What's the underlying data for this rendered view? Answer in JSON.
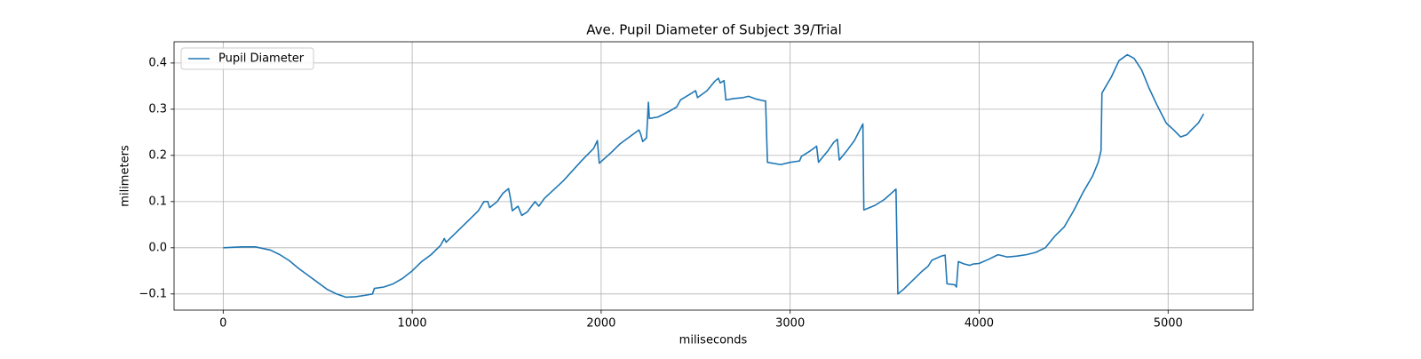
{
  "chart_data": {
    "type": "line",
    "title": "Ave. Pupil Diameter of Subject 39/Trial",
    "xlabel": "miliseconds",
    "ylabel": "milimeters",
    "x": [
      0,
      100,
      170,
      250,
      300,
      350,
      400,
      450,
      500,
      550,
      600,
      650,
      700,
      750,
      790,
      800,
      850,
      900,
      950,
      1000,
      1050,
      1100,
      1150,
      1170,
      1180,
      1250,
      1300,
      1350,
      1380,
      1400,
      1410,
      1450,
      1480,
      1510,
      1520,
      1530,
      1560,
      1580,
      1610,
      1650,
      1670,
      1700,
      1800,
      1900,
      1960,
      1980,
      1990,
      2050,
      2100,
      2200,
      2210,
      2220,
      2240,
      2250,
      2255,
      2300,
      2350,
      2400,
      2420,
      2480,
      2500,
      2510,
      2560,
      2600,
      2620,
      2630,
      2650,
      2660,
      2700,
      2750,
      2780,
      2820,
      2860,
      2870,
      2880,
      2950,
      3000,
      3050,
      3060,
      3100,
      3140,
      3150,
      3200,
      3230,
      3250,
      3260,
      3300,
      3340,
      3385,
      3390,
      3450,
      3500,
      3560,
      3570,
      3600,
      3650,
      3700,
      3730,
      3750,
      3800,
      3820,
      3830,
      3870,
      3880,
      3890,
      3920,
      3950,
      3970,
      4000,
      4050,
      4100,
      4150,
      4200,
      4250,
      4300,
      4350,
      4400,
      4450,
      4500,
      4550,
      4600,
      4630,
      4645,
      4650,
      4700,
      4740,
      4784,
      4820,
      4860,
      4900,
      4940,
      4990,
      5030,
      5066,
      5100,
      5130,
      5160,
      5188
    ],
    "series": [
      {
        "name": "Pupil Diameter",
        "color": "#1f77b4",
        "values": [
          0.0,
          0.002,
          0.002,
          -0.005,
          -0.015,
          -0.028,
          -0.045,
          -0.06,
          -0.075,
          -0.09,
          -0.1,
          -0.107,
          -0.106,
          -0.103,
          -0.1,
          -0.088,
          -0.085,
          -0.078,
          -0.066,
          -0.05,
          -0.03,
          -0.015,
          0.005,
          0.02,
          0.012,
          0.04,
          0.06,
          0.08,
          0.1,
          0.1,
          0.087,
          0.1,
          0.118,
          0.128,
          0.107,
          0.08,
          0.09,
          0.07,
          0.078,
          0.1,
          0.09,
          0.107,
          0.145,
          0.19,
          0.215,
          0.232,
          0.183,
          0.205,
          0.225,
          0.255,
          0.245,
          0.23,
          0.238,
          0.315,
          0.28,
          0.283,
          0.293,
          0.305,
          0.32,
          0.335,
          0.34,
          0.325,
          0.34,
          0.36,
          0.367,
          0.357,
          0.362,
          0.32,
          0.323,
          0.325,
          0.328,
          0.322,
          0.318,
          0.318,
          0.185,
          0.18,
          0.185,
          0.188,
          0.198,
          0.208,
          0.22,
          0.185,
          0.21,
          0.228,
          0.235,
          0.19,
          0.21,
          0.232,
          0.268,
          0.082,
          0.092,
          0.105,
          0.127,
          -0.1,
          -0.09,
          -0.07,
          -0.05,
          -0.04,
          -0.027,
          -0.018,
          -0.016,
          -0.078,
          -0.08,
          -0.085,
          -0.03,
          -0.035,
          -0.038,
          -0.035,
          -0.034,
          -0.025,
          -0.015,
          -0.02,
          -0.018,
          -0.015,
          -0.01,
          0.0,
          0.025,
          0.045,
          0.08,
          0.12,
          0.155,
          0.185,
          0.21,
          0.335,
          0.37,
          0.405,
          0.418,
          0.41,
          0.385,
          0.345,
          0.31,
          0.27,
          0.255,
          0.24,
          0.245,
          0.258,
          0.27,
          0.29
        ]
      }
    ],
    "xlim": [
      -260,
      5450
    ],
    "ylim": [
      -0.135,
      0.446
    ],
    "xticks": [
      0,
      1000,
      2000,
      3000,
      4000,
      5000
    ],
    "yticks": [
      {
        "value": -0.1,
        "label": "−0.1"
      },
      {
        "value": 0,
        "label": "0.0"
      },
      0.1,
      0.2,
      0.3,
      0.4
    ],
    "grid": true,
    "legend": "upper left"
  }
}
